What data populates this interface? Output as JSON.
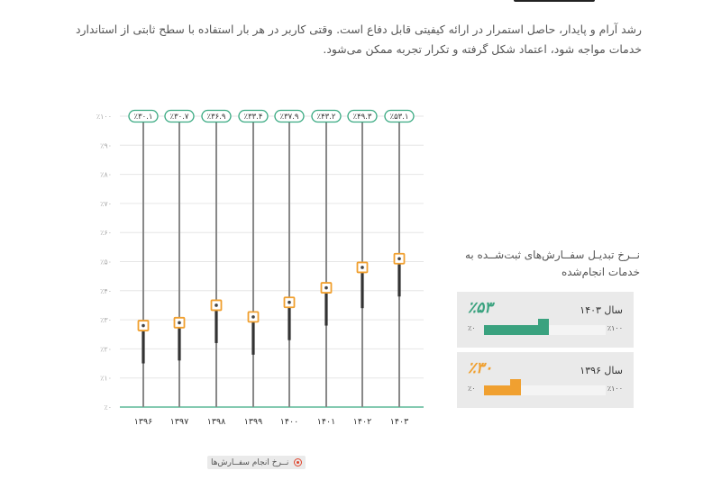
{
  "intro": {
    "text": "رشد آرام و پایدار، حاصل استمرار در ارائه کیفیتی قابل دفاع است. وقتی کاربر در هر بار استفاده با سطح ثابتی از استاندارد خدمات مواجه شود، اعتماد شکل گرفته و تکرار تجربه ممکن می‌شود."
  },
  "chart_data": {
    "type": "bar",
    "categories": [
      "۱۳۹۶",
      "۱۳۹۷",
      "۱۳۹۸",
      "۱۳۹۹",
      "۱۴۰۰",
      "۱۴۰۱",
      "۱۴۰۲",
      "۱۴۰۳"
    ],
    "series": [
      {
        "values": [
          28,
          29,
          35,
          31,
          36,
          41,
          48,
          51
        ]
      }
    ],
    "value_labels": [
      "٪۳۰.۱",
      "٪۳۰.۷",
      "٪۳۶.۹",
      "٪۳۳.۴",
      "٪۳۷.۹",
      "٪۴۳.۲",
      "٪۴۹.۳",
      "٪۵۳.۱"
    ],
    "range_low": [
      15,
      16,
      22,
      18,
      23,
      28,
      34,
      38
    ],
    "range_high": [
      28,
      29,
      35,
      31,
      36,
      41,
      48,
      51
    ],
    "y_ticks": [
      0,
      10,
      20,
      30,
      40,
      50,
      60,
      70,
      80,
      90,
      100
    ],
    "y_tick_labels": [
      "٪۰",
      "٪۱۰",
      "٪۲۰",
      "٪۳۰",
      "٪۴۰",
      "٪۵۰",
      "٪۶۰",
      "٪۷۰",
      "٪۸۰",
      "٪۹۰",
      "٪۱۰۰"
    ],
    "ylim": [
      0,
      100
    ],
    "grid": true,
    "legend_position": "bottom-center",
    "legend_label": "نــرخ انجام سفــارش‌ها",
    "colors": {
      "marker": "#f0a030",
      "label_border": "#3aaa82",
      "column": "#888888",
      "range": "#333333",
      "axis": "#3aaa82",
      "grid": "#e6e6e6"
    }
  },
  "panel": {
    "title": "نــرخ تبدیـل سفــارش‌های ثبت‌شــده به خدمات انجام‌شده",
    "cards": [
      {
        "year_label": "سال ۱۴۰۳",
        "percent_label": "٪۵۳",
        "value": 53,
        "min_label": "٪۰",
        "max_label": "٪۱۰۰",
        "color": "#3aa27f"
      },
      {
        "year_label": "سال ۱۳۹۶",
        "percent_label": "٪۳۰",
        "value": 30,
        "min_label": "٪۰",
        "max_label": "٪۱۰۰",
        "color": "#f0a030"
      }
    ]
  }
}
